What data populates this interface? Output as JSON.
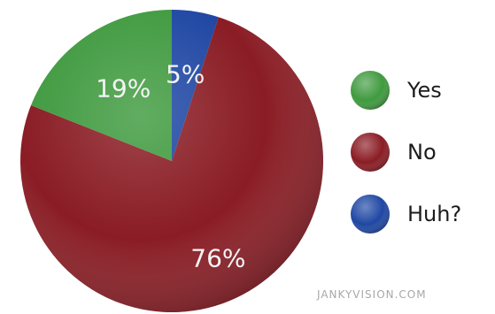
{
  "chart_data": {
    "type": "pie",
    "slices": [
      {
        "label": "Yes",
        "value": 19,
        "display": "19%",
        "color": "#3f9a3f"
      },
      {
        "label": "No",
        "value": 76,
        "display": "76%",
        "color": "#8a1c24"
      },
      {
        "label": "Huh?",
        "value": 5,
        "display": "5%",
        "color": "#1f47a3"
      }
    ],
    "legend_position": "right"
  },
  "watermark": "JANKYVISION.COM"
}
